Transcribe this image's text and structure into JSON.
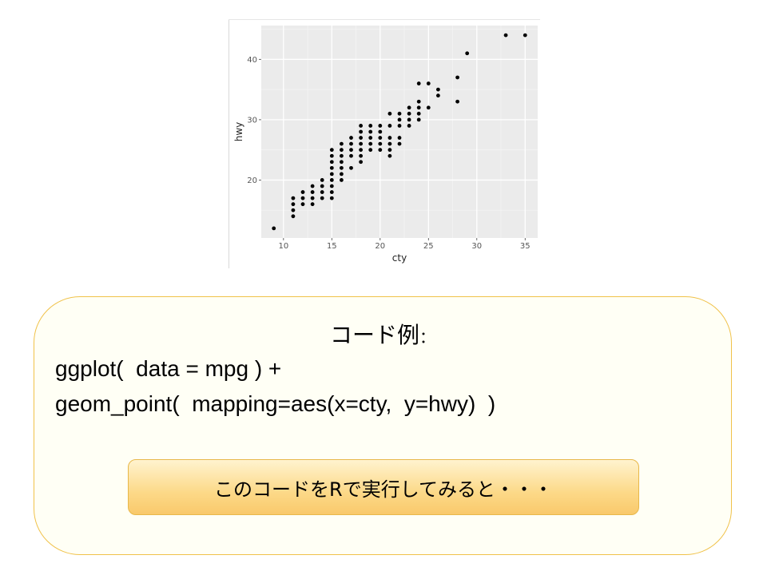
{
  "chart_data": {
    "type": "scatter",
    "title": "",
    "xlabel": "cty",
    "ylabel": "hwy",
    "xlim": [
      7.7,
      36.3
    ],
    "ylim": [
      10.4,
      45.6
    ],
    "xticks": [
      10,
      15,
      20,
      25,
      30,
      35
    ],
    "yticks": [
      20,
      30,
      40
    ],
    "grid": true,
    "colors": {
      "panel": "#ebebeb",
      "grid_major": "#ffffff",
      "grid_minor": "#f4f4f4",
      "point": "#000000"
    },
    "points": [
      [
        9,
        12
      ],
      [
        11,
        14
      ],
      [
        11,
        15
      ],
      [
        11,
        16
      ],
      [
        11,
        17
      ],
      [
        12,
        16
      ],
      [
        12,
        17
      ],
      [
        12,
        18
      ],
      [
        13,
        16
      ],
      [
        13,
        17
      ],
      [
        13,
        18
      ],
      [
        13,
        19
      ],
      [
        14,
        17
      ],
      [
        14,
        18
      ],
      [
        14,
        19
      ],
      [
        14,
        20
      ],
      [
        15,
        17
      ],
      [
        15,
        18
      ],
      [
        15,
        19
      ],
      [
        15,
        20
      ],
      [
        15,
        21
      ],
      [
        15,
        22
      ],
      [
        15,
        23
      ],
      [
        15,
        24
      ],
      [
        15,
        25
      ],
      [
        16,
        20
      ],
      [
        16,
        21
      ],
      [
        16,
        22
      ],
      [
        16,
        23
      ],
      [
        16,
        24
      ],
      [
        16,
        25
      ],
      [
        16,
        26
      ],
      [
        17,
        22
      ],
      [
        17,
        24
      ],
      [
        17,
        25
      ],
      [
        17,
        26
      ],
      [
        17,
        27
      ],
      [
        18,
        23
      ],
      [
        18,
        24
      ],
      [
        18,
        25
      ],
      [
        18,
        26
      ],
      [
        18,
        27
      ],
      [
        18,
        28
      ],
      [
        18,
        29
      ],
      [
        19,
        25
      ],
      [
        19,
        26
      ],
      [
        19,
        27
      ],
      [
        19,
        28
      ],
      [
        19,
        29
      ],
      [
        20,
        25
      ],
      [
        20,
        26
      ],
      [
        20,
        27
      ],
      [
        20,
        28
      ],
      [
        20,
        29
      ],
      [
        21,
        24
      ],
      [
        21,
        25
      ],
      [
        21,
        26
      ],
      [
        21,
        27
      ],
      [
        21,
        29
      ],
      [
        21,
        31
      ],
      [
        22,
        26
      ],
      [
        22,
        27
      ],
      [
        22,
        29
      ],
      [
        22,
        30
      ],
      [
        22,
        31
      ],
      [
        23,
        29
      ],
      [
        23,
        30
      ],
      [
        23,
        31
      ],
      [
        23,
        32
      ],
      [
        24,
        30
      ],
      [
        24,
        31
      ],
      [
        24,
        32
      ],
      [
        24,
        33
      ],
      [
        24,
        36
      ],
      [
        25,
        32
      ],
      [
        25,
        36
      ],
      [
        26,
        34
      ],
      [
        26,
        35
      ],
      [
        28,
        33
      ],
      [
        28,
        37
      ],
      [
        29,
        41
      ],
      [
        33,
        44
      ],
      [
        35,
        44
      ]
    ]
  },
  "code_box": {
    "title": "コード例",
    "title_colon": "：",
    "lines": [
      "ggplot(  data = mpg ) +",
      "geom_point(  mapping=aes(x=cty,  y=hwy)  )"
    ],
    "button_label": "このコードをRで実行してみると・・・"
  }
}
